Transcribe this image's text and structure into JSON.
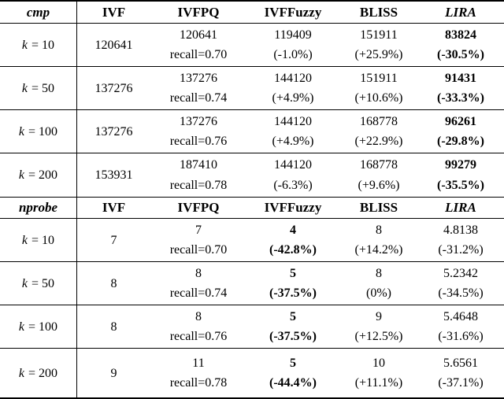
{
  "table": {
    "sections": [
      {
        "metric": "cmp",
        "headers": {
          "ivf": "IVF",
          "ivfpq": "IVFPQ",
          "ivffuzzy": "IVFFuzzy",
          "bliss": "BLISS",
          "lira": "LIRA"
        },
        "rows": [
          {
            "k_symbol": "k",
            "k_rest": "= 10",
            "ivf": "120641",
            "ivfpq": [
              "120641",
              "recall=0.70"
            ],
            "ivffuzzy": [
              "119409",
              "(-1.0%)"
            ],
            "bliss": [
              "151911",
              "(+25.9%)"
            ],
            "lira": [
              "83824",
              "(-30.5%)"
            ]
          },
          {
            "k_symbol": "k",
            "k_rest": "= 50",
            "ivf": "137276",
            "ivfpq": [
              "137276",
              "recall=0.74"
            ],
            "ivffuzzy": [
              "144120",
              "(+4.9%)"
            ],
            "bliss": [
              "151911",
              "(+10.6%)"
            ],
            "lira": [
              "91431",
              "(-33.3%)"
            ]
          },
          {
            "k_symbol": "k",
            "k_rest": "= 100",
            "ivf": "137276",
            "ivfpq": [
              "137276",
              "recall=0.76"
            ],
            "ivffuzzy": [
              "144120",
              "(+4.9%)"
            ],
            "bliss": [
              "168778",
              "(+22.9%)"
            ],
            "lira": [
              "96261",
              "(-29.8%)"
            ]
          },
          {
            "k_symbol": "k",
            "k_rest": "= 200",
            "ivf": "153931",
            "ivfpq": [
              "187410",
              "recall=0.78"
            ],
            "ivffuzzy": [
              "144120",
              "(-6.3%)"
            ],
            "bliss": [
              "168778",
              "(+9.6%)"
            ],
            "lira": [
              "99279",
              "(-35.5%)"
            ]
          }
        ]
      },
      {
        "metric": "nprobe",
        "headers": {
          "ivf": "IVF",
          "ivfpq": "IVFPQ",
          "ivffuzzy": "IVFFuzzy",
          "bliss": "BLISS",
          "lira": "LIRA"
        },
        "rows": [
          {
            "k_symbol": "k",
            "k_rest": "= 10",
            "ivf": "7",
            "ivfpq": [
              "7",
              "recall=0.70"
            ],
            "ivffuzzy": [
              "4",
              "(-42.8%)"
            ],
            "bliss": [
              "8",
              "(+14.2%)"
            ],
            "lira": [
              "4.8138",
              "(-31.2%)"
            ]
          },
          {
            "k_symbol": "k",
            "k_rest": "= 50",
            "ivf": "8",
            "ivfpq": [
              "8",
              "recall=0.74"
            ],
            "ivffuzzy": [
              "5",
              "(-37.5%)"
            ],
            "bliss": [
              "8",
              "(0%)"
            ],
            "lira": [
              "5.2342",
              "(-34.5%)"
            ]
          },
          {
            "k_symbol": "k",
            "k_rest": "= 100",
            "ivf": "8",
            "ivfpq": [
              "8",
              "recall=0.76"
            ],
            "ivffuzzy": [
              "5",
              "(-37.5%)"
            ],
            "bliss": [
              "9",
              "(+12.5%)"
            ],
            "lira": [
              "5.4648",
              "(-31.6%)"
            ]
          },
          {
            "k_symbol": "k",
            "k_rest": "= 200",
            "ivf": "9",
            "ivfpq": [
              "11",
              "recall=0.78"
            ],
            "ivffuzzy": [
              "5",
              "(-44.4%)"
            ],
            "bliss": [
              "10",
              "(+11.1%)"
            ],
            "lira": [
              "5.6561",
              "(-37.1%)"
            ]
          }
        ]
      }
    ]
  }
}
